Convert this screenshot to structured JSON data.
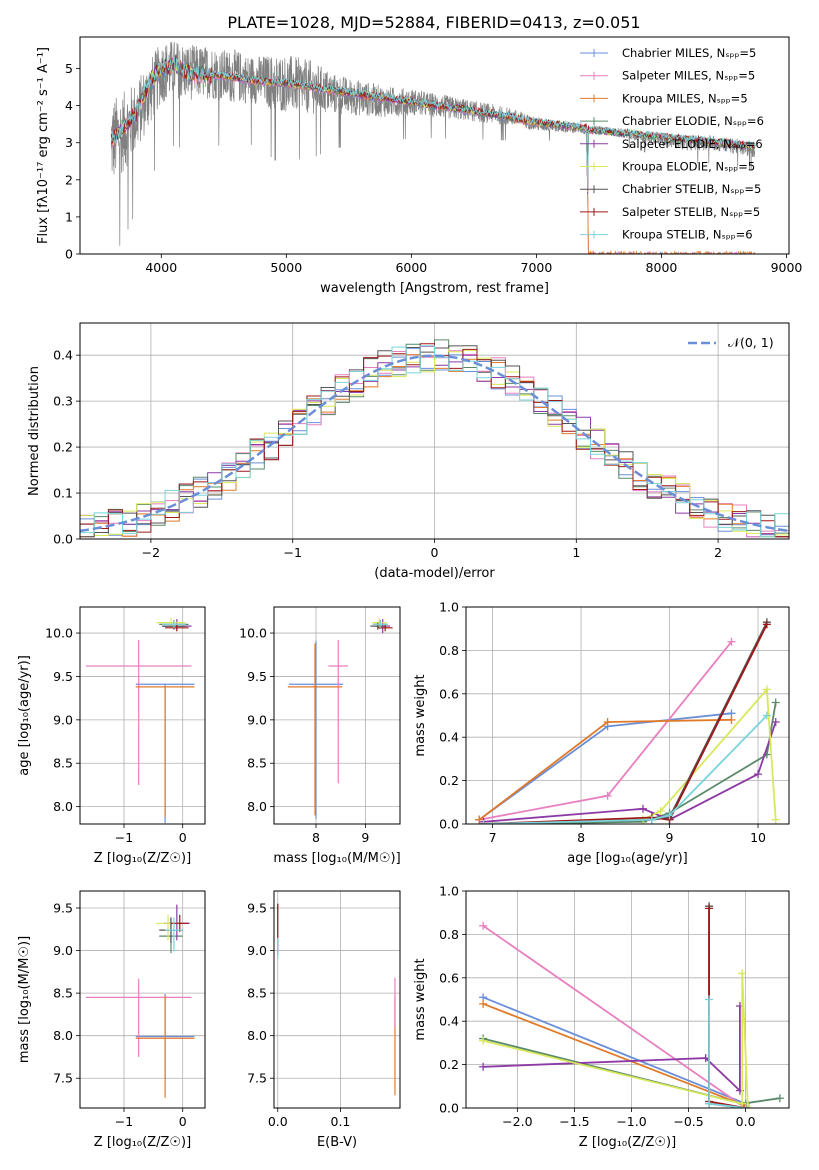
{
  "title": "PLATE=1028, MJD=52884, FIBERID=0413, z=0.051",
  "colors": [
    "#6a8fd8",
    "#e87fbf",
    "#e07a2a",
    "#5a8a6a",
    "#8e3aa6",
    "#d9e85a",
    "#555555",
    "#a01818",
    "#7ad3dc"
  ],
  "chart_data": [
    {
      "type": "line",
      "name": "spectrum",
      "xlabel": "wavelength [Angstrom, rest frame]",
      "ylabel": "Flux [fλ10⁻¹⁷ erg cm⁻² s⁻¹ A⁻¹]",
      "xlim": [
        3350,
        9020
      ],
      "ylim": [
        0,
        5.85
      ],
      "xticks": [
        4000,
        5000,
        6000,
        7000,
        8000,
        9000
      ],
      "yticks": [
        0,
        1,
        2,
        3,
        4,
        5
      ],
      "grid": false,
      "legend_position": "right",
      "legend": [
        "Chabrier MILES, Nₛₚₚ=5",
        "Salpeter MILES, Nₛₚₚ=5",
        "Kroupa MILES, Nₛₚₚ=5",
        "Chabrier ELODIE, Nₛₚₚ=6",
        "Salpeter ELODIE, Nₛₚₚ=6",
        "Kroupa ELODIE, Nₛₚₚ=5",
        "Chabrier STELIB, Nₛₚₚ=5",
        "Salpeter STELIB, Nₛₚₚ=5",
        "Kroupa STELIB, Nₛₚₚ=6"
      ],
      "observed": {
        "x": [
          3600,
          3700,
          3800,
          3900,
          4000,
          4100,
          4200,
          4300,
          4400,
          4500,
          4600,
          4700,
          4800,
          4900,
          5000,
          5200,
          5400,
          5600,
          5800,
          6000,
          6200,
          6400,
          6600,
          6800,
          7000,
          7200,
          7400,
          7600,
          7800,
          8000,
          8200,
          8400,
          8600,
          8750
        ],
        "y": [
          3.0,
          3.3,
          3.7,
          4.3,
          4.9,
          5.0,
          4.9,
          4.9,
          4.9,
          4.8,
          4.8,
          4.7,
          4.7,
          4.6,
          4.6,
          4.5,
          4.3,
          4.2,
          4.1,
          4.1,
          4.0,
          3.9,
          3.8,
          3.7,
          3.5,
          3.4,
          3.35,
          3.3,
          3.2,
          3.1,
          3.0,
          3.0,
          2.9,
          2.8
        ],
        "noise": [
          2.0,
          1.8,
          1.6,
          1.5,
          1.4,
          1.3,
          1.3,
          1.2,
          1.2,
          1.2,
          1.2,
          1.1,
          1.1,
          1.3,
          1.3,
          1.2,
          0.9,
          0.8,
          0.7,
          0.6,
          0.55,
          0.5,
          0.45,
          0.4,
          0.3,
          0.2,
          0.2,
          0.2,
          0.25,
          0.3,
          0.35,
          0.35,
          0.35,
          0.35
        ]
      },
      "model_x": [
        3600,
        3700,
        3800,
        3900,
        4000,
        4100,
        4200,
        4300,
        4500,
        4700,
        5000,
        5400,
        5800,
        6200,
        6600,
        7000,
        7400,
        7420
      ],
      "model_y": [
        3.05,
        3.4,
        3.8,
        4.6,
        5.0,
        5.1,
        4.9,
        4.85,
        4.8,
        4.7,
        4.6,
        4.4,
        4.2,
        4.0,
        3.8,
        3.55,
        3.4,
        0.0
      ]
    },
    {
      "type": "bar",
      "name": "residual-histogram",
      "xlabel": "(data-model)/error",
      "ylabel": "Normed distribution",
      "xlim": [
        -2.5,
        2.5
      ],
      "ylim": [
        0,
        0.47
      ],
      "xticks": [
        -2,
        -1,
        0,
        1,
        2
      ],
      "yticks": [
        0.0,
        0.1,
        0.2,
        0.3,
        0.4
      ],
      "grid": true,
      "bin_width": 0.1,
      "legend_position": "top-right",
      "reference_curve": "𝒩(0, 1)"
    },
    {
      "type": "scatter",
      "name": "age-vs-Z",
      "xlabel": "Z [log₁₀(Z/Z☉)]",
      "ylabel": "age  [log₁₀(age/yr)]",
      "xlim": [
        -1.75,
        0.38
      ],
      "ylim": [
        7.8,
        10.3
      ],
      "xticks": [
        -1,
        0
      ],
      "yticks": [
        8.0,
        8.5,
        9.0,
        9.5,
        10.0
      ],
      "grid": true,
      "points": [
        {
          "x": -0.3,
          "y": 9.41,
          "xerr": 0.5,
          "yerr": [
            1.6,
            0.0
          ],
          "c": 0
        },
        {
          "x": -0.75,
          "y": 9.62,
          "xerr": 0.9,
          "yerr": [
            1.37,
            0.3
          ],
          "c": 1
        },
        {
          "x": -0.3,
          "y": 9.38,
          "xerr": 0.5,
          "yerr": [
            1.5,
            0.0
          ],
          "c": 2
        },
        {
          "x": -0.15,
          "y": 10.1,
          "xerr": 0.25,
          "yerr": [
            0.05,
            0.05
          ],
          "c": 3
        },
        {
          "x": -0.1,
          "y": 10.08,
          "xerr": 0.25,
          "yerr": [
            0.05,
            0.08
          ],
          "c": 4
        },
        {
          "x": -0.2,
          "y": 10.12,
          "xerr": 0.25,
          "yerr": [
            0.05,
            0.05
          ],
          "c": 5
        },
        {
          "x": -0.15,
          "y": 10.08,
          "xerr": 0.2,
          "yerr": [
            0.04,
            0.04
          ],
          "c": 6
        },
        {
          "x": -0.1,
          "y": 10.06,
          "xerr": 0.2,
          "yerr": [
            0.04,
            0.04
          ],
          "c": 7
        },
        {
          "x": -0.15,
          "y": 10.1,
          "xerr": 0.2,
          "yerr": [
            0.04,
            0.04
          ],
          "c": 8
        }
      ]
    },
    {
      "type": "scatter",
      "name": "age-vs-mass",
      "xlabel": "mass [log₁₀(M/M☉)]",
      "ylabel": "",
      "xlim": [
        7.15,
        9.7
      ],
      "ylim": [
        7.8,
        10.3
      ],
      "xticks": [
        8,
        9
      ],
      "yticks": [
        8.0,
        8.5,
        9.0,
        9.5,
        10.0
      ],
      "grid": true,
      "points": [
        {
          "x": 8.0,
          "y": 9.41,
          "xerr": 0.55,
          "yerr": [
            1.55,
            0.5
          ],
          "c": 0
        },
        {
          "x": 8.45,
          "y": 9.62,
          "xerr": 0.2,
          "yerr": [
            1.35,
            0.3
          ],
          "c": 1
        },
        {
          "x": 7.98,
          "y": 9.38,
          "xerr": 0.55,
          "yerr": [
            1.48,
            0.5
          ],
          "c": 2
        },
        {
          "x": 9.3,
          "y": 10.1,
          "xerr": 0.15,
          "yerr": [
            0.05,
            0.05
          ],
          "c": 3
        },
        {
          "x": 9.35,
          "y": 10.08,
          "xerr": 0.15,
          "yerr": [
            0.08,
            0.08
          ],
          "c": 4
        },
        {
          "x": 9.28,
          "y": 10.12,
          "xerr": 0.15,
          "yerr": [
            0.05,
            0.05
          ],
          "c": 5
        },
        {
          "x": 9.25,
          "y": 10.08,
          "xerr": 0.15,
          "yerr": [
            0.04,
            0.04
          ],
          "c": 6
        },
        {
          "x": 9.4,
          "y": 10.06,
          "xerr": 0.15,
          "yerr": [
            0.04,
            0.04
          ],
          "c": 7
        },
        {
          "x": 9.3,
          "y": 10.1,
          "xerr": 0.15,
          "yerr": [
            0.04,
            0.04
          ],
          "c": 8
        }
      ]
    },
    {
      "type": "line",
      "name": "weight-vs-age",
      "xlabel": "age  [log₁₀(age/yr)]",
      "ylabel": "mass weight",
      "xlim": [
        6.7,
        10.35
      ],
      "ylim": [
        0,
        1.0
      ],
      "xticks": [
        7,
        8,
        9,
        10
      ],
      "yticks": [
        0.0,
        0.2,
        0.4,
        0.6,
        0.8,
        1.0
      ],
      "grid": true,
      "series": [
        {
          "c": 0,
          "x": [
            6.85,
            8.3,
            9.7
          ],
          "y": [
            0.02,
            0.45,
            0.51
          ]
        },
        {
          "c": 1,
          "x": [
            6.85,
            8.3,
            9.7
          ],
          "y": [
            0.02,
            0.13,
            0.84
          ]
        },
        {
          "c": 2,
          "x": [
            6.85,
            8.3,
            9.7
          ],
          "y": [
            0.02,
            0.47,
            0.48
          ]
        },
        {
          "c": 3,
          "x": [
            6.9,
            8.7,
            9.0,
            10.1,
            10.2
          ],
          "y": [
            0.0,
            0.01,
            0.05,
            0.32,
            0.56
          ]
        },
        {
          "c": 4,
          "x": [
            6.9,
            8.7,
            9.0,
            10.0,
            10.2
          ],
          "y": [
            0.01,
            0.07,
            0.02,
            0.23,
            0.47
          ]
        },
        {
          "c": 5,
          "x": [
            6.9,
            8.7,
            8.9,
            10.1,
            10.2
          ],
          "y": [
            0.0,
            0.02,
            0.06,
            0.62,
            0.02
          ]
        },
        {
          "c": 6,
          "x": [
            6.9,
            8.8,
            9.0,
            10.1
          ],
          "y": [
            0.0,
            0.02,
            0.03,
            0.93
          ]
        },
        {
          "c": 7,
          "x": [
            6.9,
            8.8,
            9.0,
            10.1
          ],
          "y": [
            0.0,
            0.03,
            0.02,
            0.92
          ]
        },
        {
          "c": 8,
          "x": [
            6.9,
            8.8,
            9.0,
            10.1
          ],
          "y": [
            0.0,
            0.02,
            0.04,
            0.5
          ]
        }
      ]
    },
    {
      "type": "scatter",
      "name": "mass-vs-Z",
      "xlabel": "Z [log₁₀(Z/Z☉)]",
      "ylabel": "mass [log₁₀(M/M☉)]",
      "xlim": [
        -1.75,
        0.38
      ],
      "ylim": [
        7.15,
        9.7
      ],
      "xticks": [
        -1,
        0
      ],
      "yticks": [
        7.5,
        8.0,
        8.5,
        9.0,
        9.5
      ],
      "grid": true,
      "points": [
        {
          "x": -0.3,
          "y": 7.99,
          "xerr": 0.5,
          "yerr": [
            0.5,
            0.5
          ],
          "c": 0
        },
        {
          "x": -0.75,
          "y": 8.45,
          "xerr": 0.9,
          "yerr": [
            0.7,
            0.22
          ],
          "c": 1
        },
        {
          "x": -0.3,
          "y": 7.97,
          "xerr": 0.5,
          "yerr": [
            0.7,
            0.5
          ],
          "c": 2
        },
        {
          "x": -0.2,
          "y": 9.17,
          "xerr": 0.2,
          "yerr": [
            0.2,
            0.2
          ],
          "c": 3
        },
        {
          "x": -0.1,
          "y": 9.32,
          "xerr": 0.22,
          "yerr": [
            0.2,
            0.22
          ],
          "c": 4
        },
        {
          "x": -0.25,
          "y": 9.32,
          "xerr": 0.2,
          "yerr": [
            0.2,
            0.1
          ],
          "c": 5
        },
        {
          "x": -0.2,
          "y": 9.24,
          "xerr": 0.2,
          "yerr": [
            0.15,
            0.15
          ],
          "c": 6
        },
        {
          "x": -0.05,
          "y": 9.32,
          "xerr": 0.15,
          "yerr": [
            0.1,
            0.1
          ],
          "c": 7
        },
        {
          "x": -0.15,
          "y": 9.24,
          "xerr": 0.15,
          "yerr": [
            0.25,
            0.15
          ],
          "c": 8
        }
      ]
    },
    {
      "type": "scatter",
      "name": "mass-vs-EBV",
      "xlabel": "E(B-V)",
      "ylabel": "",
      "xlim": [
        -0.006,
        0.195
      ],
      "ylim": [
        7.15,
        9.7
      ],
      "xticks": [
        0.0,
        0.1
      ],
      "yticks": [
        7.5,
        8.0,
        8.5,
        9.0,
        9.5
      ],
      "grid": true,
      "points": [
        {
          "x": 0.0,
          "y": 9.2,
          "yerr": [
            0.25,
            0.35
          ],
          "c": 4
        },
        {
          "x": 0.0,
          "y": 9.3,
          "yerr": [
            0.4,
            0.2
          ],
          "c": 8
        },
        {
          "x": 0.0,
          "y": 9.35,
          "yerr": [
            0.2,
            0.2
          ],
          "c": 7
        },
        {
          "x": 0.187,
          "y": 8.0,
          "yerr": [
            0.7,
            0.45
          ],
          "c": 2
        },
        {
          "x": 0.187,
          "y": 8.4,
          "yerr": [
            0.3,
            0.28
          ],
          "c": 1
        }
      ]
    },
    {
      "type": "line",
      "name": "weight-vs-Z",
      "xlabel": "Z [log₁₀(Z/Z☉)]",
      "ylabel": "mass weight",
      "xlim": [
        -2.45,
        0.38
      ],
      "ylim": [
        0,
        1.0
      ],
      "xticks": [
        -2.0,
        -1.5,
        -1.0,
        -0.5,
        0.0
      ],
      "yticks": [
        0.0,
        0.2,
        0.4,
        0.6,
        0.8,
        1.0
      ],
      "grid": true,
      "series": [
        {
          "c": 0,
          "x": [
            -2.3,
            0.0
          ],
          "y": [
            0.51,
            0.02
          ]
        },
        {
          "c": 1,
          "x": [
            -2.3,
            0.0
          ],
          "y": [
            0.84,
            0.0
          ]
        },
        {
          "c": 2,
          "x": [
            -2.3,
            0.0
          ],
          "y": [
            0.48,
            0.01
          ]
        },
        {
          "c": 3,
          "x": [
            -2.3,
            -0.03,
            0.3
          ],
          "y": [
            0.32,
            0.02,
            0.045
          ]
        },
        {
          "c": 4,
          "x": [
            -2.3,
            -0.35,
            -0.05,
            -0.05
          ],
          "y": [
            0.19,
            0.23,
            0.08,
            0.47
          ]
        },
        {
          "c": 5,
          "x": [
            -2.3,
            -0.03,
            -0.03,
            0.02
          ],
          "y": [
            0.31,
            0.02,
            0.62,
            0.0
          ]
        },
        {
          "c": 6,
          "x": [
            -0.32,
            -0.32,
            0.0
          ],
          "y": [
            0.93,
            0.02,
            0.0
          ]
        },
        {
          "c": 7,
          "x": [
            -0.32,
            -0.32,
            0.0
          ],
          "y": [
            0.92,
            0.03,
            0.0
          ]
        },
        {
          "c": 8,
          "x": [
            -0.32,
            -0.32,
            0.0
          ],
          "y": [
            0.5,
            0.02,
            0.0
          ]
        }
      ]
    }
  ]
}
